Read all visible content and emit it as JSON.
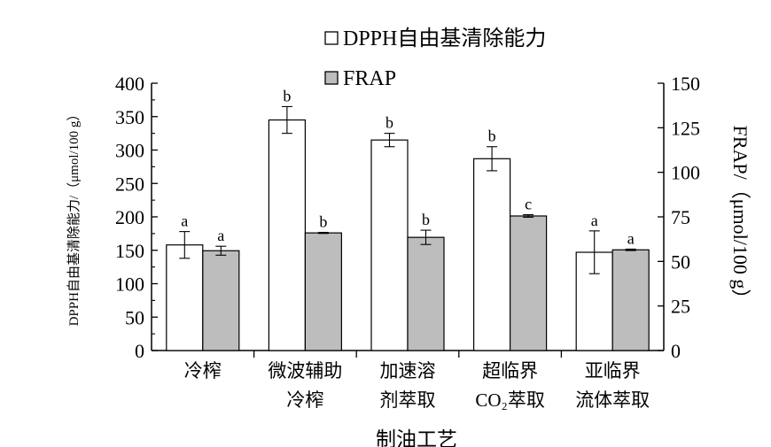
{
  "chart_data": {
    "type": "bar",
    "xlabel": "制油工艺",
    "ylabel_left": "DPPH自由基清除能力/（μmol/100 g）",
    "ylabel_right": "FRAP/（μmol/100 g）",
    "categories": [
      [
        "冷榨"
      ],
      [
        "微波辅助",
        "冷榨"
      ],
      [
        "加速溶",
        "剂萃取"
      ],
      [
        "超临界",
        "CO₂萃取"
      ],
      [
        "亚临界",
        "流体萃取"
      ]
    ],
    "left_axis": {
      "min": 0,
      "max": 400,
      "ticks": [
        "0",
        "50",
        "100",
        "150",
        "200",
        "250",
        "300",
        "350",
        "400"
      ]
    },
    "right_axis": {
      "min": 0,
      "max": 150,
      "ticks": [
        "0",
        "25",
        "50",
        "75",
        "100",
        "125",
        "150"
      ]
    },
    "series": [
      {
        "name": "DPPH自由基清除能力",
        "axis": "left",
        "color": "#ffffff",
        "values": [
          158,
          345,
          315,
          287,
          147
        ],
        "errors": [
          20,
          20,
          10,
          18,
          32
        ],
        "labels": [
          "a",
          "b",
          "b",
          "b",
          "a"
        ]
      },
      {
        "name": "FRAP",
        "axis": "right",
        "color": "#bdbdbd",
        "values": [
          56,
          66,
          63.5,
          75.5,
          56.5
        ],
        "errors": [
          2.5,
          0.3,
          4,
          0.7,
          0.4
        ],
        "labels": [
          "a",
          "b",
          "b",
          "c",
          "a"
        ]
      }
    ],
    "legend_position": "top"
  }
}
